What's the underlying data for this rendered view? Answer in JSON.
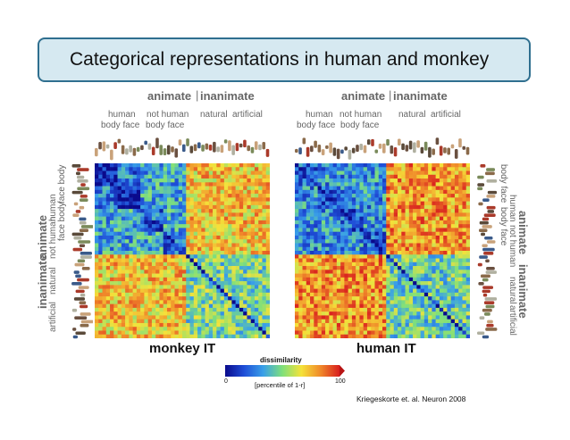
{
  "slide": {
    "title": "Categorical representations in human and monkey",
    "citation": "Kriegeskorte et. al. Neuron 2008"
  },
  "figure": {
    "panels": [
      {
        "caption": "monkey IT",
        "top_labels": {
          "animate": "animate",
          "inanimate": "inanimate",
          "human": "human",
          "not_human": "not human",
          "natural": "natural",
          "artificial": "artificial",
          "body_face": "body face",
          "body_face2": "body face"
        },
        "side_labels": {
          "animate": "animate",
          "inanimate": "inanimate",
          "human": "human",
          "not_human": "not human",
          "natural": "natural",
          "artificial": "artificial",
          "face_body": "face body",
          "face_body2": "face body"
        }
      },
      {
        "caption": "human IT",
        "top_labels": {
          "animate": "animate",
          "inanimate": "inanimate",
          "human": "human",
          "not_human": "not human",
          "natural": "natural",
          "artificial": "artificial",
          "body_face": "body face",
          "body_face2": "body face"
        },
        "side_labels": {
          "animate": "animate",
          "inanimate": "inanimate",
          "human": "human",
          "not_human": "not human",
          "natural": "natural",
          "artificial": "artificial",
          "body_face": "body face",
          "body_face2": "body face"
        }
      }
    ],
    "colorbar": {
      "title": "dissimilarity",
      "min_label": "0",
      "max_label": "100",
      "subtitle": "[percentile of 1-r]",
      "colors": [
        "#0a0a8c",
        "#1f4fd8",
        "#39a0e8",
        "#7fe07a",
        "#f5e23a",
        "#f08a2a",
        "#d81e1e"
      ]
    }
  }
}
